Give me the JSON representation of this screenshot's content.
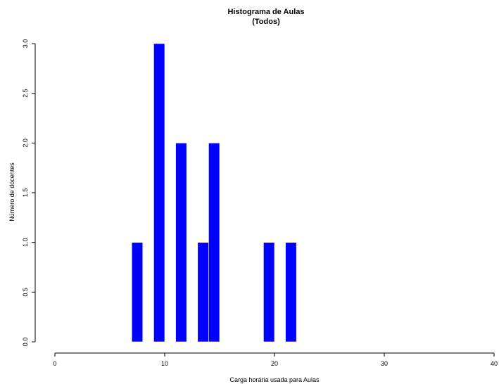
{
  "chart_data": {
    "type": "bar",
    "title": "Histograma de Aulas",
    "subtitle": "(Todos)",
    "xlabel": "Carga horária usada para Aulas",
    "ylabel": "Número de docentes",
    "xlim": [
      0,
      40
    ],
    "ylim": [
      0,
      3
    ],
    "x_ticks": [
      "0",
      "10",
      "20",
      "30",
      "40"
    ],
    "y_ticks": [
      "0.0",
      "0.5",
      "1.0",
      "1.5",
      "2.0",
      "2.5",
      "3.0"
    ],
    "bins": [
      {
        "x_start": 7,
        "x_end": 8,
        "value": 1
      },
      {
        "x_start": 9,
        "x_end": 10,
        "value": 3
      },
      {
        "x_start": 11,
        "x_end": 12,
        "value": 2
      },
      {
        "x_start": 13,
        "x_end": 14,
        "value": 1
      },
      {
        "x_start": 14,
        "x_end": 15,
        "value": 2
      },
      {
        "x_start": 19,
        "x_end": 20,
        "value": 1
      },
      {
        "x_start": 21,
        "x_end": 22,
        "value": 1
      }
    ],
    "bar_color": "#0000ff",
    "grid": false
  }
}
